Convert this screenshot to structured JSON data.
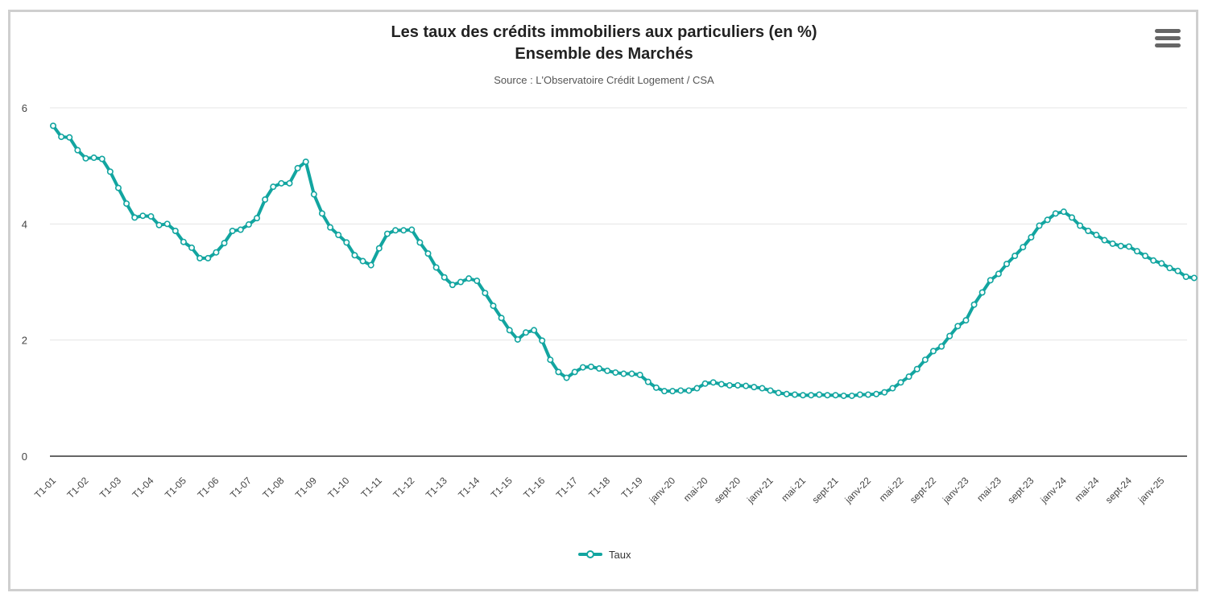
{
  "chart_data": {
    "type": "line",
    "title": "Les taux des crédits immobiliers aux particuliers (en %)",
    "subtitle_line2": "Ensemble des Marchés",
    "source": "Source : L'Observatoire Crédit Logement / CSA",
    "ylim": [
      0,
      6
    ],
    "yticks": [
      "0",
      "2",
      "4",
      "6"
    ],
    "xtick_labels": [
      {
        "label": "T1-01",
        "index": 0
      },
      {
        "label": "T1-02",
        "index": 4
      },
      {
        "label": "T1-03",
        "index": 8
      },
      {
        "label": "T1-04",
        "index": 12
      },
      {
        "label": "T1-05",
        "index": 16
      },
      {
        "label": "T1-06",
        "index": 20
      },
      {
        "label": "T1-07",
        "index": 24
      },
      {
        "label": "T1-08",
        "index": 28
      },
      {
        "label": "T1-09",
        "index": 32
      },
      {
        "label": "T1-10",
        "index": 36
      },
      {
        "label": "T1-11",
        "index": 40
      },
      {
        "label": "T1-12",
        "index": 44
      },
      {
        "label": "T1-13",
        "index": 48
      },
      {
        "label": "T1-14",
        "index": 52
      },
      {
        "label": "T1-15",
        "index": 56
      },
      {
        "label": "T1-16",
        "index": 60
      },
      {
        "label": "T1-17",
        "index": 64
      },
      {
        "label": "T1-18",
        "index": 68
      },
      {
        "label": "T1-19",
        "index": 72
      },
      {
        "label": "janv-20",
        "index": 76
      },
      {
        "label": "mai-20",
        "index": 80
      },
      {
        "label": "sept-20",
        "index": 84
      },
      {
        "label": "janv-21",
        "index": 88
      },
      {
        "label": "mai-21",
        "index": 92
      },
      {
        "label": "sept-21",
        "index": 96
      },
      {
        "label": "janv-22",
        "index": 100
      },
      {
        "label": "mai-22",
        "index": 104
      },
      {
        "label": "sept-22",
        "index": 108
      },
      {
        "label": "janv-23",
        "index": 112
      },
      {
        "label": "mai-23",
        "index": 116
      },
      {
        "label": "sept-23",
        "index": 120
      },
      {
        "label": "janv-24",
        "index": 124
      },
      {
        "label": "mai-24",
        "index": 128
      },
      {
        "label": "sept-24",
        "index": 132
      },
      {
        "label": "janv-25",
        "index": 136
      }
    ],
    "grid": true,
    "legend_position": "bottom",
    "series": [
      {
        "name": "Taux",
        "color": "#12a5a0",
        "values": [
          5.69,
          5.5,
          5.49,
          5.27,
          5.13,
          5.14,
          5.12,
          4.9,
          4.62,
          4.35,
          4.11,
          4.14,
          4.13,
          3.98,
          4.0,
          3.88,
          3.69,
          3.59,
          3.41,
          3.41,
          3.51,
          3.67,
          3.88,
          3.9,
          3.99,
          4.1,
          4.42,
          4.64,
          4.7,
          4.7,
          4.96,
          5.07,
          4.51,
          4.18,
          3.94,
          3.81,
          3.68,
          3.46,
          3.36,
          3.29,
          3.58,
          3.83,
          3.89,
          3.89,
          3.9,
          3.68,
          3.49,
          3.25,
          3.08,
          2.95,
          3.0,
          3.06,
          3.02,
          2.81,
          2.59,
          2.38,
          2.17,
          2.01,
          2.13,
          2.17,
          1.99,
          1.66,
          1.45,
          1.35,
          1.45,
          1.53,
          1.54,
          1.51,
          1.47,
          1.44,
          1.42,
          1.42,
          1.4,
          1.28,
          1.18,
          1.12,
          1.12,
          1.13,
          1.13,
          1.17,
          1.25,
          1.27,
          1.24,
          1.22,
          1.22,
          1.21,
          1.19,
          1.17,
          1.13,
          1.09,
          1.07,
          1.06,
          1.05,
          1.05,
          1.06,
          1.05,
          1.05,
          1.04,
          1.04,
          1.06,
          1.06,
          1.07,
          1.1,
          1.17,
          1.27,
          1.37,
          1.5,
          1.66,
          1.81,
          1.89,
          2.07,
          2.24,
          2.34,
          2.61,
          2.82,
          3.03,
          3.14,
          3.31,
          3.45,
          3.6,
          3.77,
          3.97,
          4.07,
          4.18,
          4.21,
          4.11,
          3.97,
          3.88,
          3.81,
          3.72,
          3.66,
          3.62,
          3.61,
          3.53,
          3.45,
          3.37,
          3.32,
          3.24,
          3.19,
          3.09,
          3.07
        ]
      }
    ]
  },
  "menu_icon": "hamburger-menu-icon"
}
